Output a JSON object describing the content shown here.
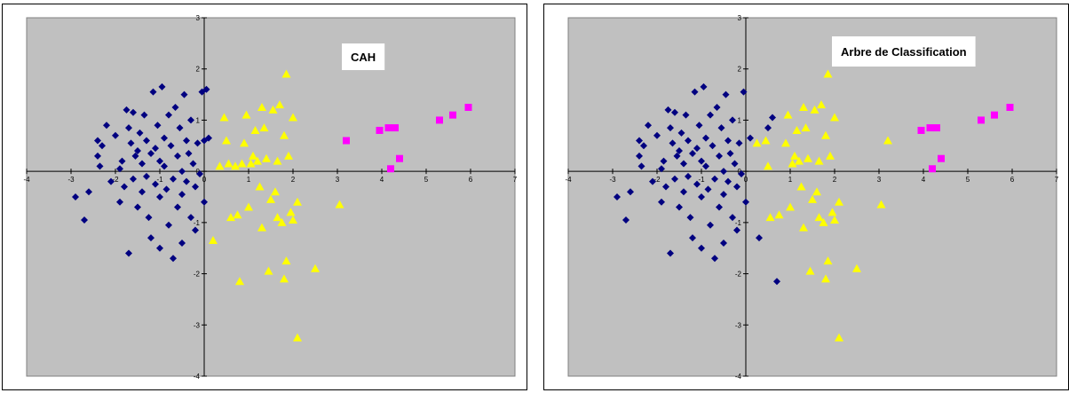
{
  "chart_data": [
    {
      "type": "scatter",
      "title": "CAH",
      "xlabel": "",
      "ylabel": "",
      "xlim": [
        -4,
        7
      ],
      "ylim": [
        -4,
        3
      ],
      "x_ticks": [
        "-4",
        "-3",
        "-2",
        "-1",
        "0",
        "1",
        "2",
        "3",
        "4",
        "5",
        "6",
        "7"
      ],
      "y_ticks": [
        "3",
        "2",
        "1",
        "0",
        "-1",
        "-2",
        "-3",
        "-4"
      ],
      "grid": false,
      "plot_background": "#c0c0c0",
      "series": [
        {
          "marker": "diamond",
          "color": "#000080",
          "points": [
            [
              -2.9,
              -0.5
            ],
            [
              -2.7,
              -0.95
            ],
            [
              -2.6,
              -0.4
            ],
            [
              -2.4,
              0.6
            ],
            [
              -2.4,
              0.3
            ],
            [
              -2.35,
              0.1
            ],
            [
              -2.3,
              0.5
            ],
            [
              -2.2,
              0.9
            ],
            [
              -2.1,
              -0.2
            ],
            [
              -2.0,
              0.7
            ],
            [
              -1.9,
              0.05
            ],
            [
              -1.9,
              -0.6
            ],
            [
              -1.85,
              0.2
            ],
            [
              -1.8,
              -0.3
            ],
            [
              -1.75,
              1.2
            ],
            [
              -1.7,
              -1.6
            ],
            [
              -1.7,
              0.85
            ],
            [
              -1.65,
              0.55
            ],
            [
              -1.6,
              1.15
            ],
            [
              -1.6,
              -0.15
            ],
            [
              -1.55,
              0.3
            ],
            [
              -1.5,
              0.4
            ],
            [
              -1.5,
              -0.7
            ],
            [
              -1.45,
              0.75
            ],
            [
              -1.4,
              0.15
            ],
            [
              -1.4,
              -0.4
            ],
            [
              -1.35,
              1.1
            ],
            [
              -1.3,
              0.6
            ],
            [
              -1.3,
              -0.1
            ],
            [
              -1.25,
              -0.9
            ],
            [
              -1.2,
              0.35
            ],
            [
              -1.2,
              -1.3
            ],
            [
              -1.15,
              1.55
            ],
            [
              -1.1,
              0.45
            ],
            [
              -1.1,
              -0.25
            ],
            [
              -1.05,
              0.9
            ],
            [
              -1.0,
              0.2
            ],
            [
              -1.0,
              -0.5
            ],
            [
              -1.0,
              -1.5
            ],
            [
              -0.95,
              1.65
            ],
            [
              -0.9,
              0.65
            ],
            [
              -0.9,
              0.1
            ],
            [
              -0.85,
              -0.35
            ],
            [
              -0.8,
              1.1
            ],
            [
              -0.8,
              -1.05
            ],
            [
              -0.75,
              0.5
            ],
            [
              -0.7,
              -0.15
            ],
            [
              -0.7,
              -1.7
            ],
            [
              -0.65,
              1.25
            ],
            [
              -0.6,
              0.3
            ],
            [
              -0.6,
              -0.7
            ],
            [
              -0.55,
              0.85
            ],
            [
              -0.5,
              0.0
            ],
            [
              -0.5,
              -0.45
            ],
            [
              -0.5,
              -1.4
            ],
            [
              -0.45,
              1.5
            ],
            [
              -0.4,
              0.6
            ],
            [
              -0.4,
              -0.2
            ],
            [
              -0.35,
              0.35
            ],
            [
              -0.3,
              -0.9
            ],
            [
              -0.3,
              1.0
            ],
            [
              -0.25,
              0.15
            ],
            [
              -0.2,
              -0.3
            ],
            [
              -0.2,
              -1.15
            ],
            [
              -0.15,
              0.55
            ],
            [
              -0.1,
              -0.05
            ],
            [
              -0.05,
              1.55
            ],
            [
              0.0,
              -0.6
            ],
            [
              0.0,
              0.6
            ],
            [
              0.05,
              1.6
            ],
            [
              0.1,
              0.65
            ]
          ]
        },
        {
          "marker": "triangle",
          "color": "#ffff00",
          "points": [
            [
              0.2,
              -1.35
            ],
            [
              0.35,
              0.1
            ],
            [
              0.45,
              1.05
            ],
            [
              0.5,
              0.6
            ],
            [
              0.55,
              0.15
            ],
            [
              0.6,
              -0.9
            ],
            [
              0.7,
              0.1
            ],
            [
              0.75,
              -0.85
            ],
            [
              0.8,
              -2.15
            ],
            [
              0.85,
              0.15
            ],
            [
              0.9,
              0.55
            ],
            [
              0.95,
              1.1
            ],
            [
              1.0,
              -0.7
            ],
            [
              1.05,
              0.15
            ],
            [
              1.1,
              0.3
            ],
            [
              1.15,
              0.8
            ],
            [
              1.2,
              0.2
            ],
            [
              1.25,
              -0.3
            ],
            [
              1.3,
              1.25
            ],
            [
              1.3,
              -1.1
            ],
            [
              1.35,
              0.85
            ],
            [
              1.4,
              0.25
            ],
            [
              1.45,
              -1.95
            ],
            [
              1.5,
              -0.55
            ],
            [
              1.55,
              1.2
            ],
            [
              1.6,
              -0.4
            ],
            [
              1.65,
              0.2
            ],
            [
              1.7,
              1.3
            ],
            [
              1.75,
              -1.0
            ],
            [
              1.8,
              -2.1
            ],
            [
              1.8,
              0.7
            ],
            [
              1.85,
              -1.75
            ],
            [
              1.85,
              1.9
            ],
            [
              1.9,
              0.3
            ],
            [
              1.95,
              -0.8
            ],
            [
              2.0,
              1.05
            ],
            [
              2.1,
              -0.6
            ],
            [
              2.1,
              -3.25
            ],
            [
              2.5,
              -1.9
            ],
            [
              3.05,
              -0.65
            ],
            [
              2.0,
              -0.95
            ],
            [
              1.65,
              -0.9
            ]
          ]
        },
        {
          "marker": "square",
          "color": "#ff00ff",
          "points": [
            [
              3.2,
              0.6
            ],
            [
              3.95,
              0.8
            ],
            [
              4.15,
              0.85
            ],
            [
              4.2,
              0.05
            ],
            [
              4.3,
              0.85
            ],
            [
              4.4,
              0.25
            ],
            [
              5.3,
              1.0
            ],
            [
              5.6,
              1.1
            ],
            [
              5.95,
              1.25
            ]
          ]
        }
      ]
    },
    {
      "type": "scatter",
      "title": "Arbre de Classification",
      "xlabel": "",
      "ylabel": "",
      "xlim": [
        -4,
        7
      ],
      "ylim": [
        -4,
        3
      ],
      "x_ticks": [
        "-4",
        "-3",
        "-2",
        "-1",
        "0",
        "1",
        "2",
        "3",
        "4",
        "5",
        "6",
        "7"
      ],
      "y_ticks": [
        "3",
        "2",
        "1",
        "0",
        "-1",
        "-2",
        "-3",
        "-4"
      ],
      "grid": false,
      "plot_background": "#c0c0c0",
      "series": [
        {
          "marker": "diamond",
          "color": "#000080",
          "points": [
            [
              -2.9,
              -0.5
            ],
            [
              -2.7,
              -0.95
            ],
            [
              -2.6,
              -0.4
            ],
            [
              -2.4,
              0.6
            ],
            [
              -2.4,
              0.3
            ],
            [
              -2.35,
              0.1
            ],
            [
              -2.3,
              0.5
            ],
            [
              -2.2,
              0.9
            ],
            [
              -2.1,
              -0.2
            ],
            [
              -2.0,
              0.7
            ],
            [
              -1.9,
              0.05
            ],
            [
              -1.9,
              -0.6
            ],
            [
              -1.85,
              0.2
            ],
            [
              -1.8,
              -0.3
            ],
            [
              -1.75,
              1.2
            ],
            [
              -1.7,
              -1.6
            ],
            [
              -1.7,
              0.85
            ],
            [
              -1.65,
              0.55
            ],
            [
              -1.6,
              1.15
            ],
            [
              -1.6,
              -0.15
            ],
            [
              -1.55,
              0.3
            ],
            [
              -1.5,
              0.4
            ],
            [
              -1.5,
              -0.7
            ],
            [
              -1.45,
              0.75
            ],
            [
              -1.4,
              0.15
            ],
            [
              -1.4,
              -0.4
            ],
            [
              -1.35,
              1.1
            ],
            [
              -1.3,
              0.6
            ],
            [
              -1.3,
              -0.1
            ],
            [
              -1.25,
              -0.9
            ],
            [
              -1.2,
              0.35
            ],
            [
              -1.2,
              -1.3
            ],
            [
              -1.15,
              1.55
            ],
            [
              -1.1,
              0.45
            ],
            [
              -1.1,
              -0.25
            ],
            [
              -1.05,
              0.9
            ],
            [
              -1.0,
              0.2
            ],
            [
              -1.0,
              -0.5
            ],
            [
              -1.0,
              -1.5
            ],
            [
              -0.95,
              1.65
            ],
            [
              -0.9,
              0.65
            ],
            [
              -0.9,
              0.1
            ],
            [
              -0.85,
              -0.35
            ],
            [
              -0.8,
              1.1
            ],
            [
              -0.8,
              -1.05
            ],
            [
              -0.75,
              0.5
            ],
            [
              -0.7,
              -0.15
            ],
            [
              -0.7,
              -1.7
            ],
            [
              -0.65,
              1.25
            ],
            [
              -0.6,
              0.3
            ],
            [
              -0.6,
              -0.7
            ],
            [
              -0.55,
              0.85
            ],
            [
              -0.5,
              0.0
            ],
            [
              -0.5,
              -0.45
            ],
            [
              -0.5,
              -1.4
            ],
            [
              -0.45,
              1.5
            ],
            [
              -0.4,
              0.6
            ],
            [
              -0.4,
              -0.2
            ],
            [
              -0.35,
              0.35
            ],
            [
              -0.3,
              -0.9
            ],
            [
              -0.3,
              1.0
            ],
            [
              -0.25,
              0.15
            ],
            [
              -0.2,
              -0.3
            ],
            [
              -0.2,
              -1.15
            ],
            [
              -0.15,
              0.55
            ],
            [
              -0.1,
              -0.05
            ],
            [
              -0.05,
              1.55
            ],
            [
              0.0,
              -0.6
            ],
            [
              0.1,
              0.65
            ],
            [
              0.3,
              -1.3
            ],
            [
              0.5,
              0.85
            ],
            [
              0.6,
              1.05
            ],
            [
              0.7,
              -2.15
            ]
          ]
        },
        {
          "marker": "triangle",
          "color": "#ffff00",
          "points": [
            [
              0.25,
              0.55
            ],
            [
              0.45,
              0.6
            ],
            [
              0.5,
              0.1
            ],
            [
              0.55,
              -0.9
            ],
            [
              0.75,
              -0.85
            ],
            [
              0.9,
              0.55
            ],
            [
              0.95,
              1.1
            ],
            [
              1.0,
              -0.7
            ],
            [
              1.05,
              0.15
            ],
            [
              1.1,
              0.3
            ],
            [
              1.15,
              0.8
            ],
            [
              1.2,
              0.2
            ],
            [
              1.25,
              -0.3
            ],
            [
              1.3,
              1.25
            ],
            [
              1.3,
              -1.1
            ],
            [
              1.35,
              0.85
            ],
            [
              1.4,
              0.25
            ],
            [
              1.45,
              -1.95
            ],
            [
              1.5,
              -0.55
            ],
            [
              1.55,
              1.2
            ],
            [
              1.6,
              -0.4
            ],
            [
              1.65,
              0.2
            ],
            [
              1.7,
              1.3
            ],
            [
              1.75,
              -1.0
            ],
            [
              1.8,
              -2.1
            ],
            [
              1.8,
              0.7
            ],
            [
              1.85,
              -1.75
            ],
            [
              1.85,
              1.9
            ],
            [
              1.9,
              0.3
            ],
            [
              1.95,
              -0.8
            ],
            [
              2.0,
              1.05
            ],
            [
              2.1,
              -0.6
            ],
            [
              2.1,
              -3.25
            ],
            [
              2.5,
              -1.9
            ],
            [
              3.05,
              -0.65
            ],
            [
              3.2,
              0.6
            ],
            [
              2.0,
              -0.95
            ],
            [
              1.65,
              -0.9
            ]
          ]
        },
        {
          "marker": "square",
          "color": "#ff00ff",
          "points": [
            [
              3.95,
              0.8
            ],
            [
              4.15,
              0.85
            ],
            [
              4.2,
              0.05
            ],
            [
              4.3,
              0.85
            ],
            [
              4.4,
              0.25
            ],
            [
              5.3,
              1.0
            ],
            [
              5.6,
              1.1
            ],
            [
              5.95,
              1.25
            ]
          ]
        }
      ]
    }
  ]
}
